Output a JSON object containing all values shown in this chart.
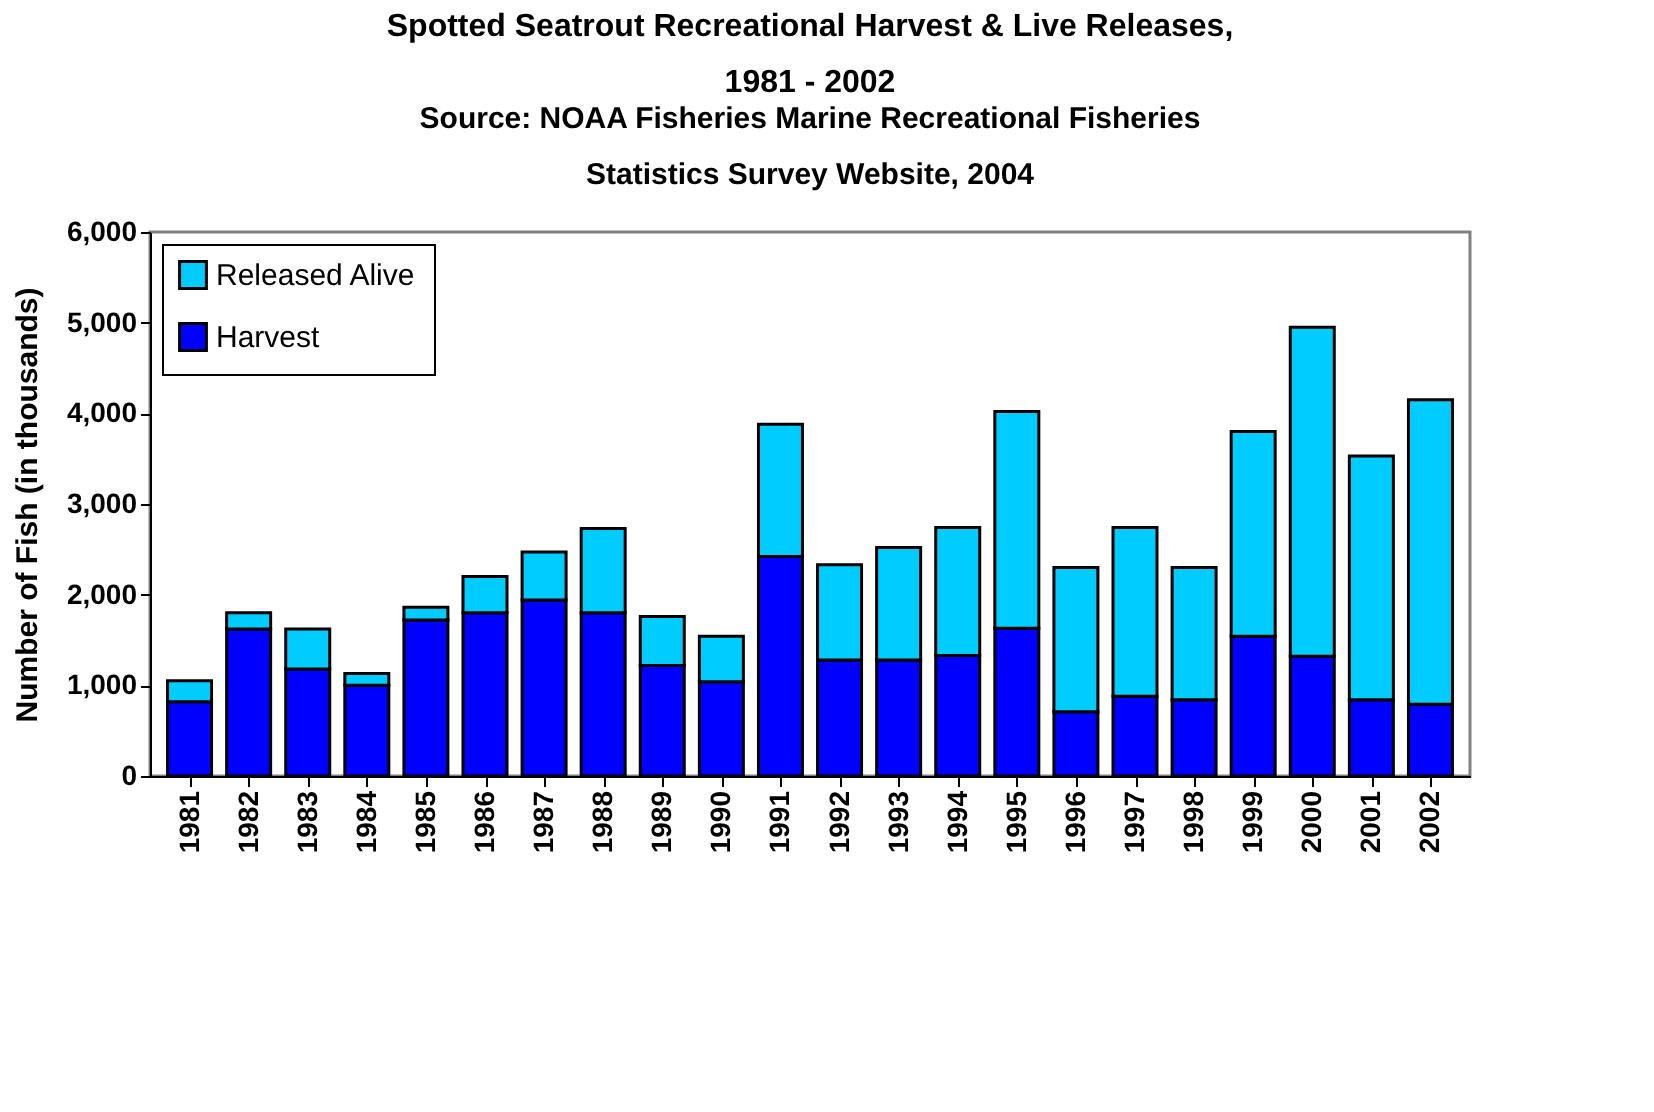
{
  "chart_data": {
    "type": "bar",
    "stacked": true,
    "title": "Spotted Seatrout Recreational Harvest & Live Releases, 1981 - 2002",
    "subtitle": "Source: NOAA Fisheries Marine Recreational Fisheries Statistics Survey Website, 2004",
    "ylabel": "Number of Fish (in thousands)",
    "categories": [
      "1981",
      "1982",
      "1983",
      "1984",
      "1985",
      "1986",
      "1987",
      "1988",
      "1989",
      "1990",
      "1991",
      "1992",
      "1993",
      "1994",
      "1995",
      "1996",
      "1997",
      "1998",
      "1999",
      "2000",
      "2001",
      "2002"
    ],
    "series": [
      {
        "name": "Harvest",
        "color": "#0000ff",
        "values": [
          820,
          1620,
          1180,
          1000,
          1720,
          1800,
          1940,
          1800,
          1220,
          1040,
          2420,
          1280,
          1280,
          1330,
          1630,
          710,
          880,
          840,
          1540,
          1320,
          840,
          790
        ]
      },
      {
        "name": "Released Alive",
        "color": "#00ccff",
        "values": [
          230,
          180,
          440,
          130,
          140,
          400,
          530,
          930,
          540,
          500,
          1460,
          1050,
          1240,
          1410,
          2390,
          1590,
          1860,
          1460,
          2260,
          3630,
          2690,
          3360
        ]
      }
    ],
    "ylim": [
      0,
      6000
    ],
    "yticks": [
      {
        "value": 0,
        "label": "0"
      },
      {
        "value": 1000,
        "label": "1,000"
      },
      {
        "value": 2000,
        "label": "2,000"
      },
      {
        "value": 3000,
        "label": "3,000"
      },
      {
        "value": 4000,
        "label": "4,000"
      },
      {
        "value": 5000,
        "label": "5,000"
      },
      {
        "value": 6000,
        "label": "6,000"
      }
    ],
    "grid": false,
    "legend": "top left"
  }
}
